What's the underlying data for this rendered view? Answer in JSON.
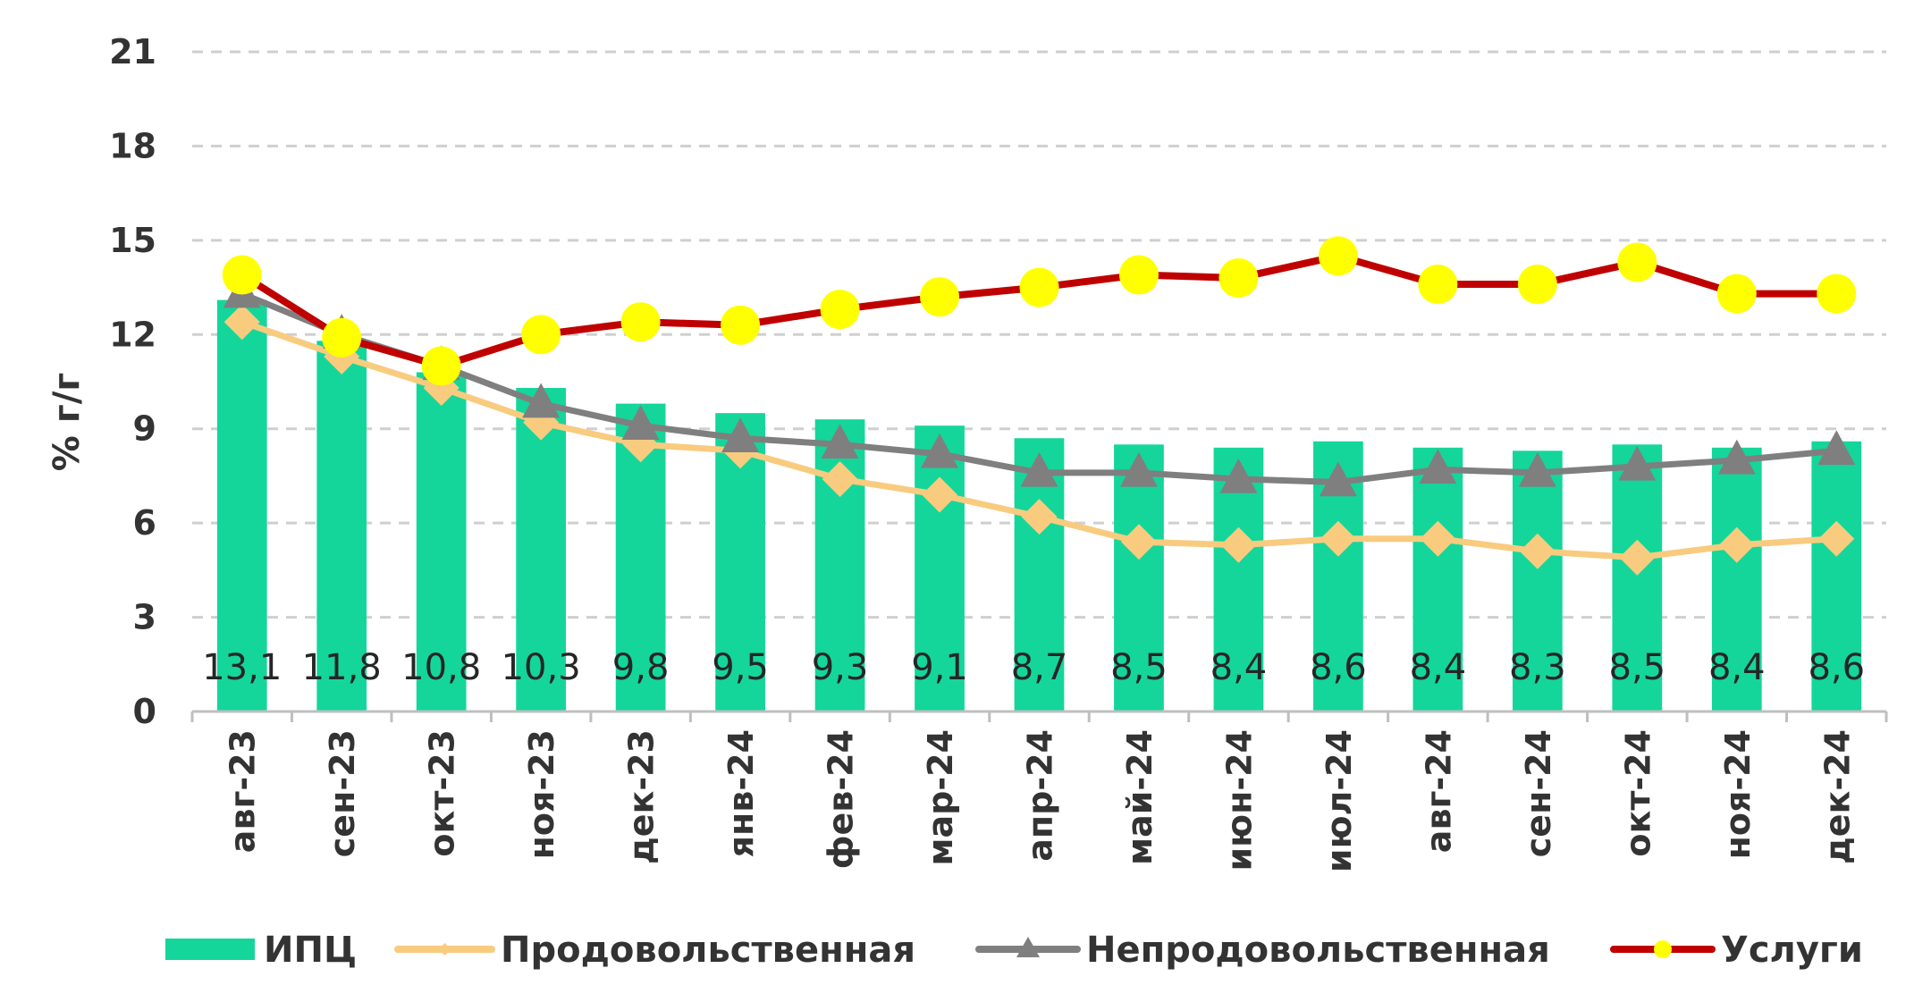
{
  "chart_data": {
    "type": "bar",
    "ylabel": "% г/г",
    "ylim": [
      0,
      21
    ],
    "yticks": [
      0,
      3,
      6,
      9,
      12,
      15,
      18,
      21
    ],
    "grid": true,
    "legend_position": "bottom",
    "categories": [
      "авг-23",
      "сен-23",
      "окт-23",
      "ноя-23",
      "дек-23",
      "янв-24",
      "фев-24",
      "мар-24",
      "апр-24",
      "май-24",
      "июн-24",
      "июл-24",
      "авг-24",
      "сен-24",
      "окт-24",
      "ноя-24",
      "дек-24"
    ],
    "series": [
      {
        "name": "ИПЦ",
        "type": "bar",
        "color": "#14D69A",
        "values": [
          13.1,
          11.8,
          10.8,
          10.3,
          9.8,
          9.5,
          9.3,
          9.1,
          8.7,
          8.5,
          8.4,
          8.6,
          8.4,
          8.3,
          8.5,
          8.4,
          8.6
        ],
        "labels": [
          "13,1",
          "11,8",
          "10,8",
          "10,3",
          "9,8",
          "9,5",
          "9,3",
          "9,1",
          "8,7",
          "8,5",
          "8,4",
          "8,6",
          "8,4",
          "8,3",
          "8,5",
          "8,4",
          "8,6"
        ]
      },
      {
        "name": "Продовольственная",
        "type": "line",
        "marker": "diamond",
        "color": "#F8CB7F",
        "values": [
          12.4,
          11.3,
          10.3,
          9.2,
          8.5,
          8.3,
          7.4,
          6.9,
          6.2,
          5.4,
          5.3,
          5.5,
          5.5,
          5.1,
          4.9,
          5.3,
          5.5
        ]
      },
      {
        "name": "Непродовольственная",
        "type": "line",
        "marker": "triangle",
        "color": "#7F7F7F",
        "values": [
          13.3,
          12.0,
          11.0,
          9.8,
          9.1,
          8.7,
          8.5,
          8.2,
          7.6,
          7.6,
          7.4,
          7.3,
          7.7,
          7.6,
          7.8,
          8.0,
          8.3
        ]
      },
      {
        "name": "Услуги",
        "type": "line",
        "marker": "circle",
        "color": "#C00000",
        "marker_color": "#FFFF00",
        "values": [
          13.9,
          11.9,
          11.0,
          12.0,
          12.4,
          12.3,
          12.8,
          13.2,
          13.5,
          13.9,
          13.8,
          14.5,
          13.6,
          13.6,
          14.3,
          13.3,
          13.3
        ]
      }
    ]
  }
}
